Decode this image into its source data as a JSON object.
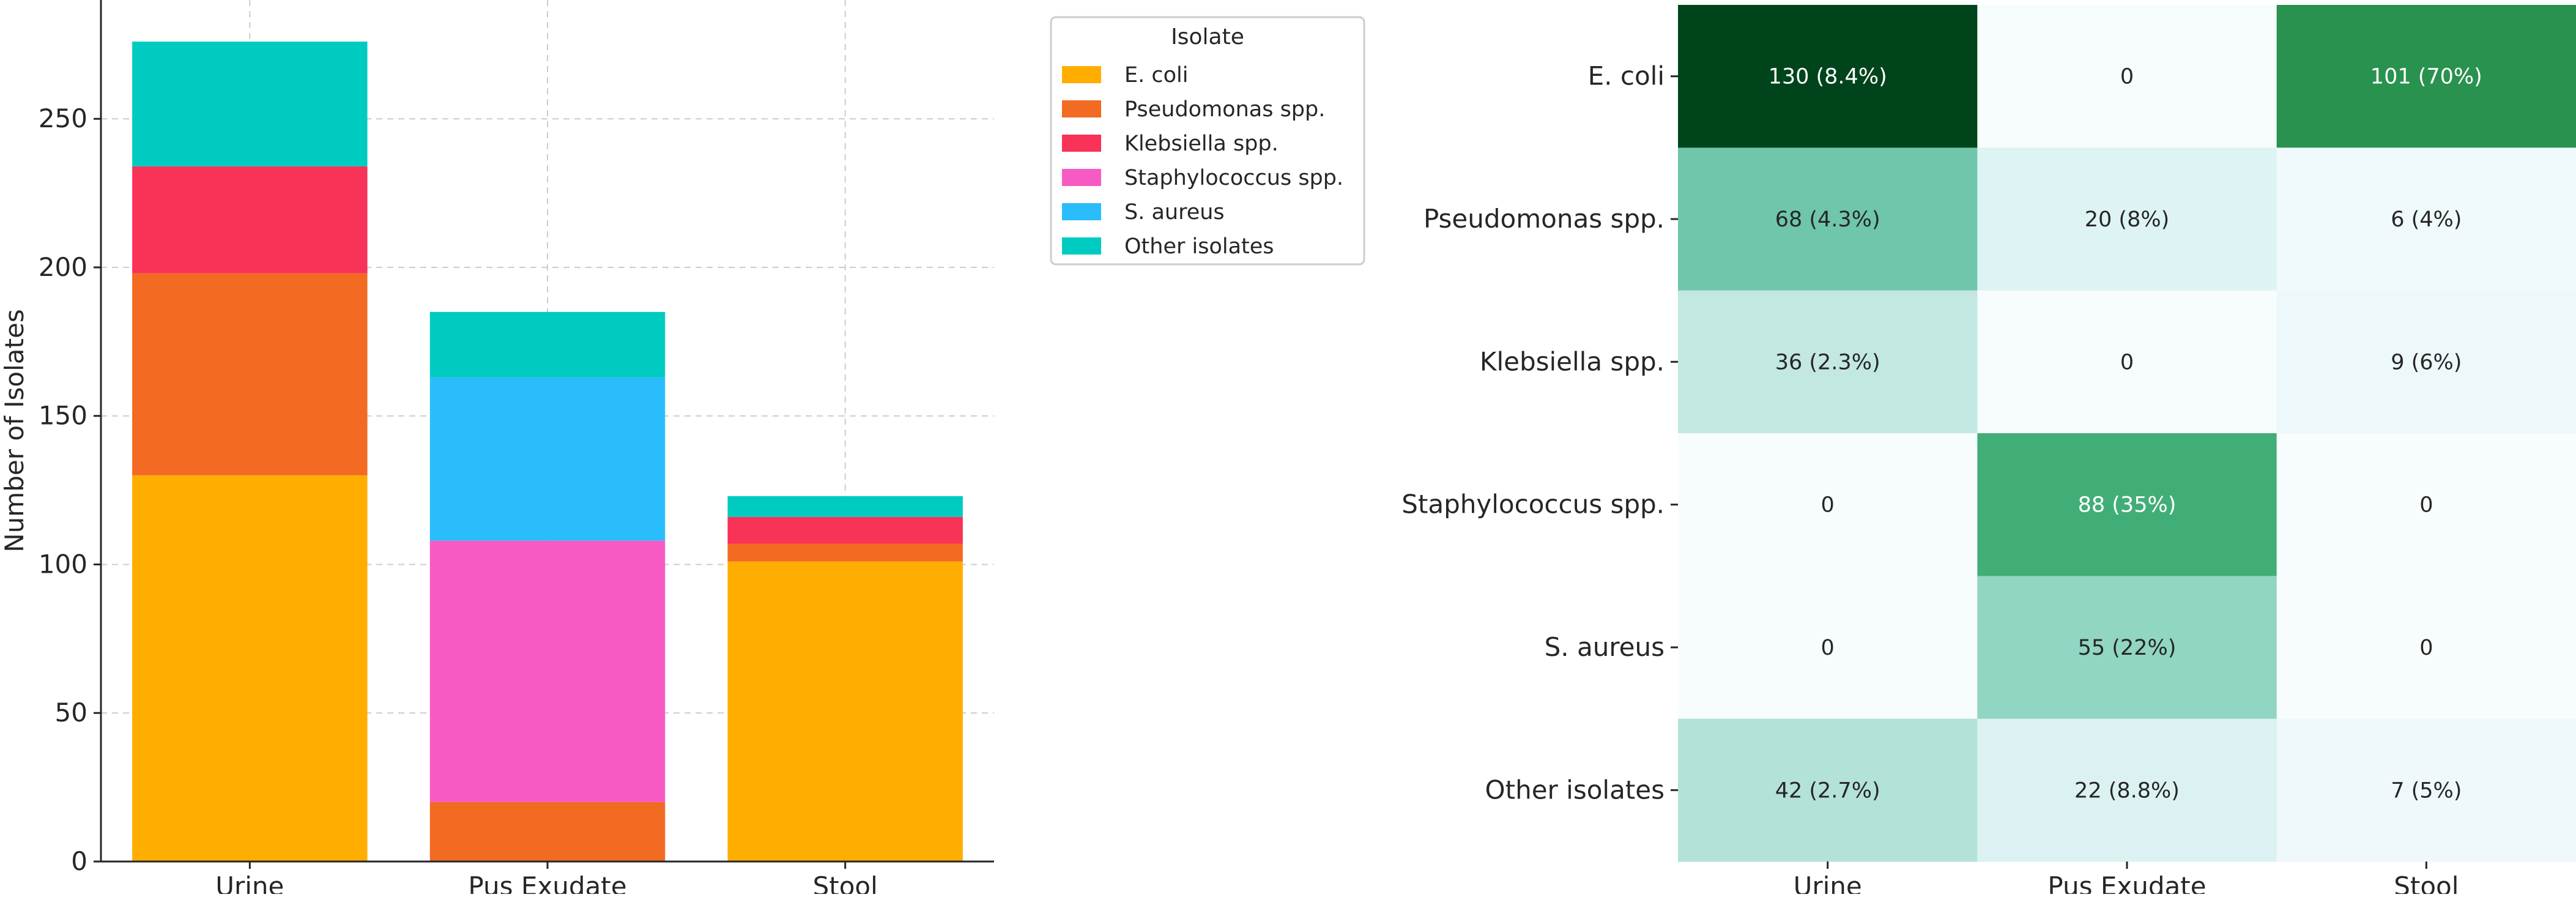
{
  "chart_data": [
    {
      "type": "bar",
      "stacked": true,
      "categories": [
        "Urine",
        "Pus Exudate",
        "Stool"
      ],
      "series": [
        {
          "name": "E. coli",
          "color": "#ffae00",
          "values": [
            130,
            0,
            101
          ]
        },
        {
          "name": "Pseudomonas spp.",
          "color": "#f36a22",
          "values": [
            68,
            20,
            6
          ]
        },
        {
          "name": "Klebsiella spp.",
          "color": "#f93258",
          "values": [
            36,
            0,
            9
          ]
        },
        {
          "name": "Staphylococcus spp.",
          "color": "#f85ac4",
          "values": [
            0,
            88,
            0
          ]
        },
        {
          "name": "S. aureus",
          "color": "#29bdfb",
          "values": [
            0,
            55,
            0
          ]
        },
        {
          "name": "Other isolates",
          "color": "#00cbc0",
          "values": [
            42,
            22,
            7
          ]
        }
      ],
      "ylabel": "Number of Isolates",
      "xlabel": "",
      "ylim": [
        0,
        290
      ],
      "yticks": [
        0,
        50,
        100,
        150,
        200,
        250
      ],
      "legend_title": "Isolate",
      "legend_placement": "upper-right-outside",
      "grid": true
    },
    {
      "type": "heatmap",
      "rows": [
        "E. coli",
        "Pseudomonas spp.",
        "Klebsiella spp.",
        "Staphylococcus spp.",
        "S. aureus",
        "Other isolates"
      ],
      "columns": [
        "Urine",
        "Pus Exudate",
        "Stool"
      ],
      "values": [
        [
          130,
          0,
          101
        ],
        [
          68,
          20,
          6
        ],
        [
          36,
          0,
          9
        ],
        [
          0,
          88,
          0
        ],
        [
          0,
          55,
          0
        ],
        [
          42,
          22,
          7
        ]
      ],
      "labels": [
        [
          "130 (8.4%)",
          "0",
          "101 (70%)"
        ],
        [
          "68 (4.3%)",
          "20 (8%)",
          "6 (4%)"
        ],
        [
          "36 (2.3%)",
          "0",
          "9 (6%)"
        ],
        [
          "0",
          "88 (35%)",
          "0"
        ],
        [
          "0",
          "55 (22%)",
          "0"
        ],
        [
          "42 (2.7%)",
          "22 (8.8%)",
          "7 (5%)"
        ]
      ],
      "colormap": "greens"
    }
  ]
}
